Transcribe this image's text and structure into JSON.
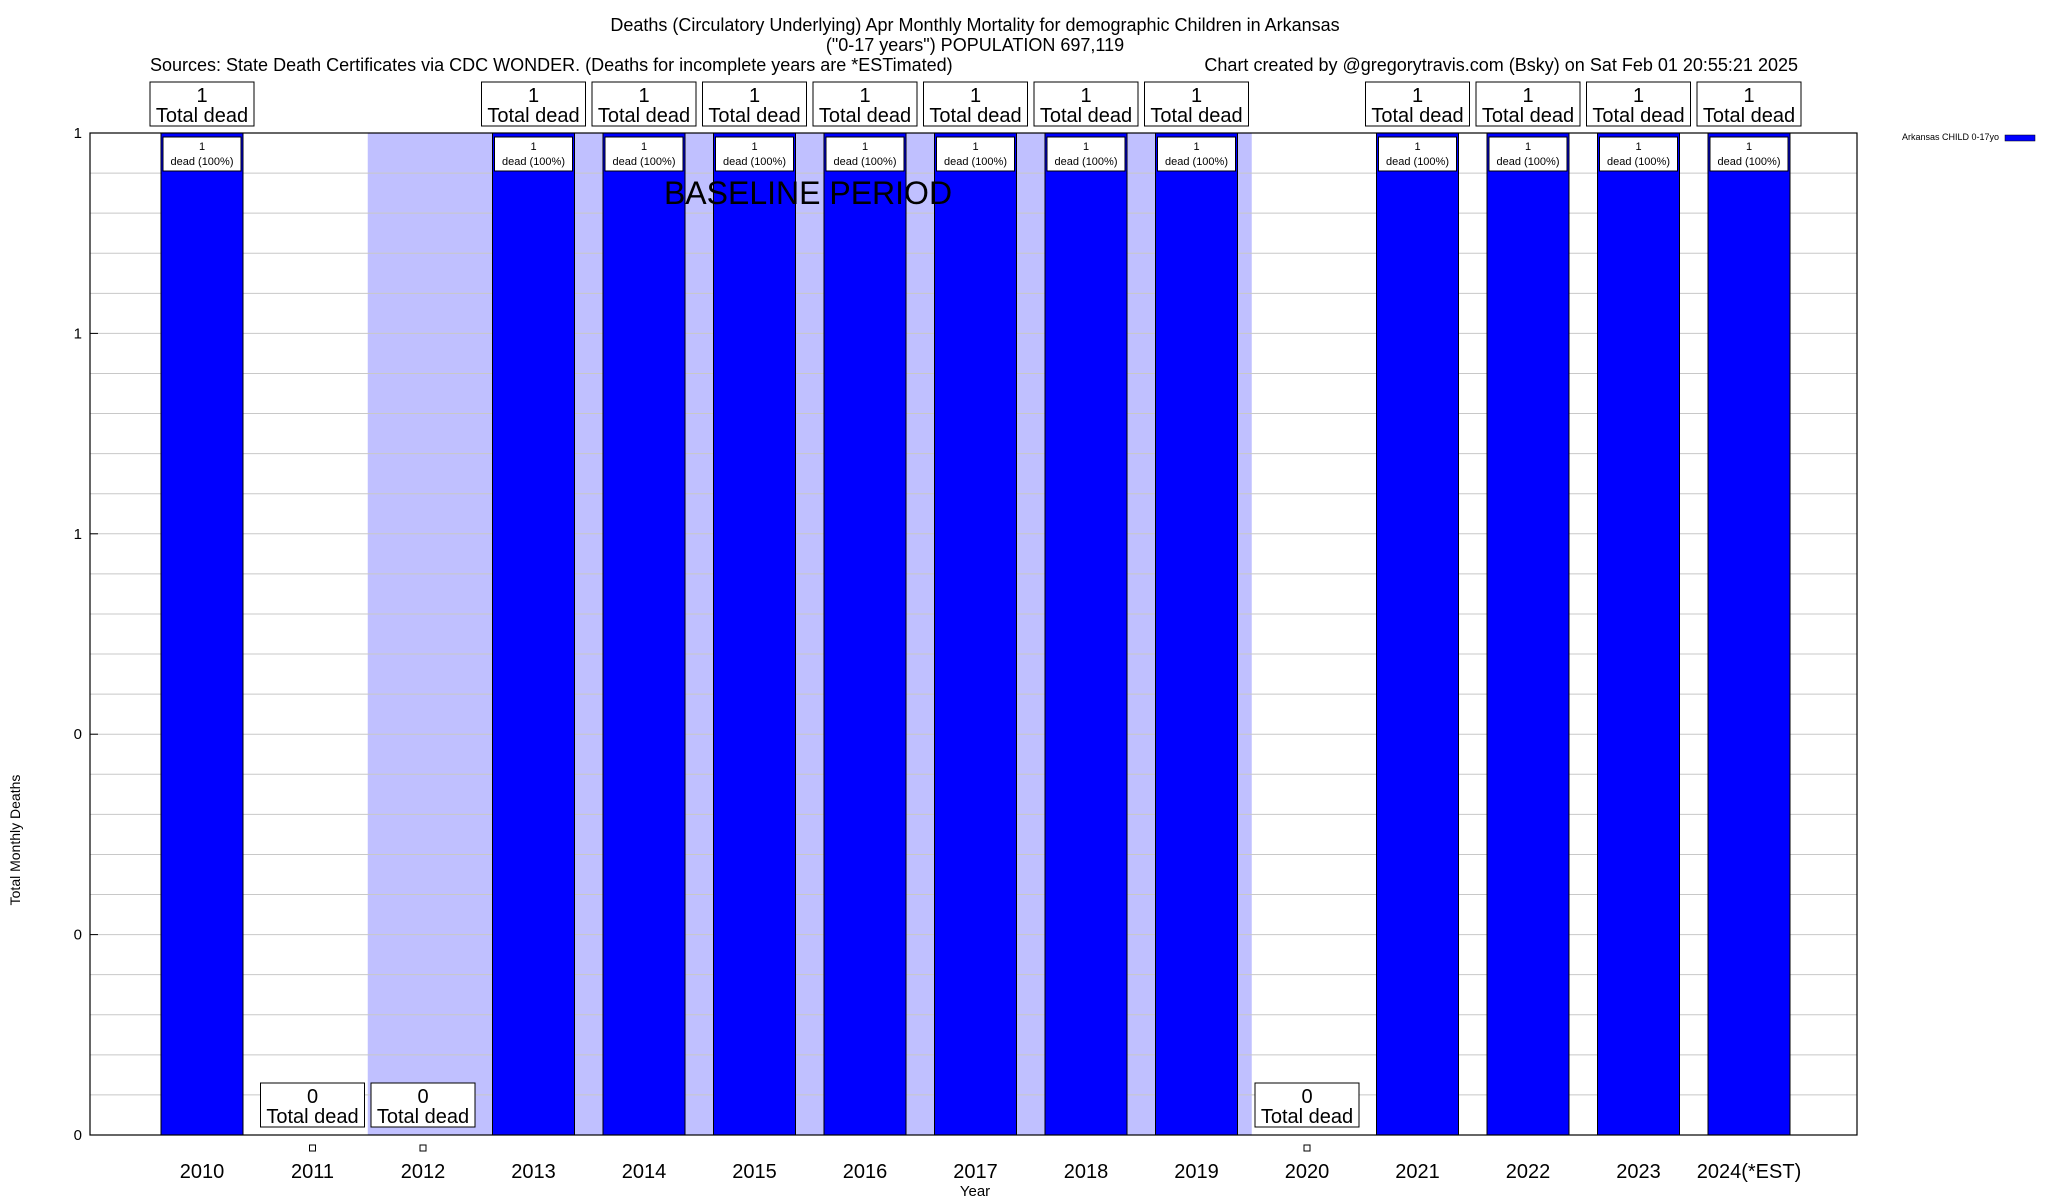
{
  "chart_data": {
    "type": "bar",
    "title_lines": [
      "Deaths (Circulatory Underlying) Apr Monthly Mortality for demographic Children in Arkansas",
      "(\"0-17 years\") POPULATION 697,119"
    ],
    "sources": "Sources: State Death Certificates via CDC WONDER. (Deaths for incomplete years are *ESTimated)",
    "credit": "Chart created by @gregorytravis.com (Bsky) on Sat Feb 01 20:55:21 2025",
    "xlabel": "Year",
    "ylabel": "Total Monthly Deaths",
    "ylim": [
      0,
      1
    ],
    "y_tick_labels": [
      "0",
      "0",
      "0",
      "1",
      "1",
      "1"
    ],
    "categories": [
      "2010",
      "2011",
      "2012",
      "2013",
      "2014",
      "2015",
      "2016",
      "2017",
      "2018",
      "2019",
      "2020",
      "2021",
      "2022",
      "2023",
      "2024(*EST)"
    ],
    "series": [
      {
        "name": "Arkansas CHILD 0-17yo",
        "color": "#0000ff",
        "values": [
          1,
          0,
          0,
          1,
          1,
          1,
          1,
          1,
          1,
          1,
          0,
          1,
          1,
          1,
          1
        ]
      }
    ],
    "total_labels": [
      "1",
      "0",
      "0",
      "1",
      "1",
      "1",
      "1",
      "1",
      "1",
      "1",
      "0",
      "1",
      "1",
      "1",
      "1"
    ],
    "total_suffix": "Total dead",
    "bar_labels": [
      "1\ndead (100%)",
      "",
      "",
      "1\ndead (100%)",
      "1\ndead (100%)",
      "1\ndead (100%)",
      "1\ndead (100%)",
      "1\ndead (100%)",
      "1\ndead (100%)",
      "1\ndead (100%)",
      "",
      "1\ndead (100%)",
      "1\ndead (100%)",
      "1\ndead (100%)",
      "1\ndead (100%)"
    ],
    "baseline": {
      "label": "BASELINE PERIOD",
      "from": "2012",
      "to": "2019",
      "color": "#c0c0ff"
    },
    "grid": true,
    "legend_position": "top-right"
  }
}
